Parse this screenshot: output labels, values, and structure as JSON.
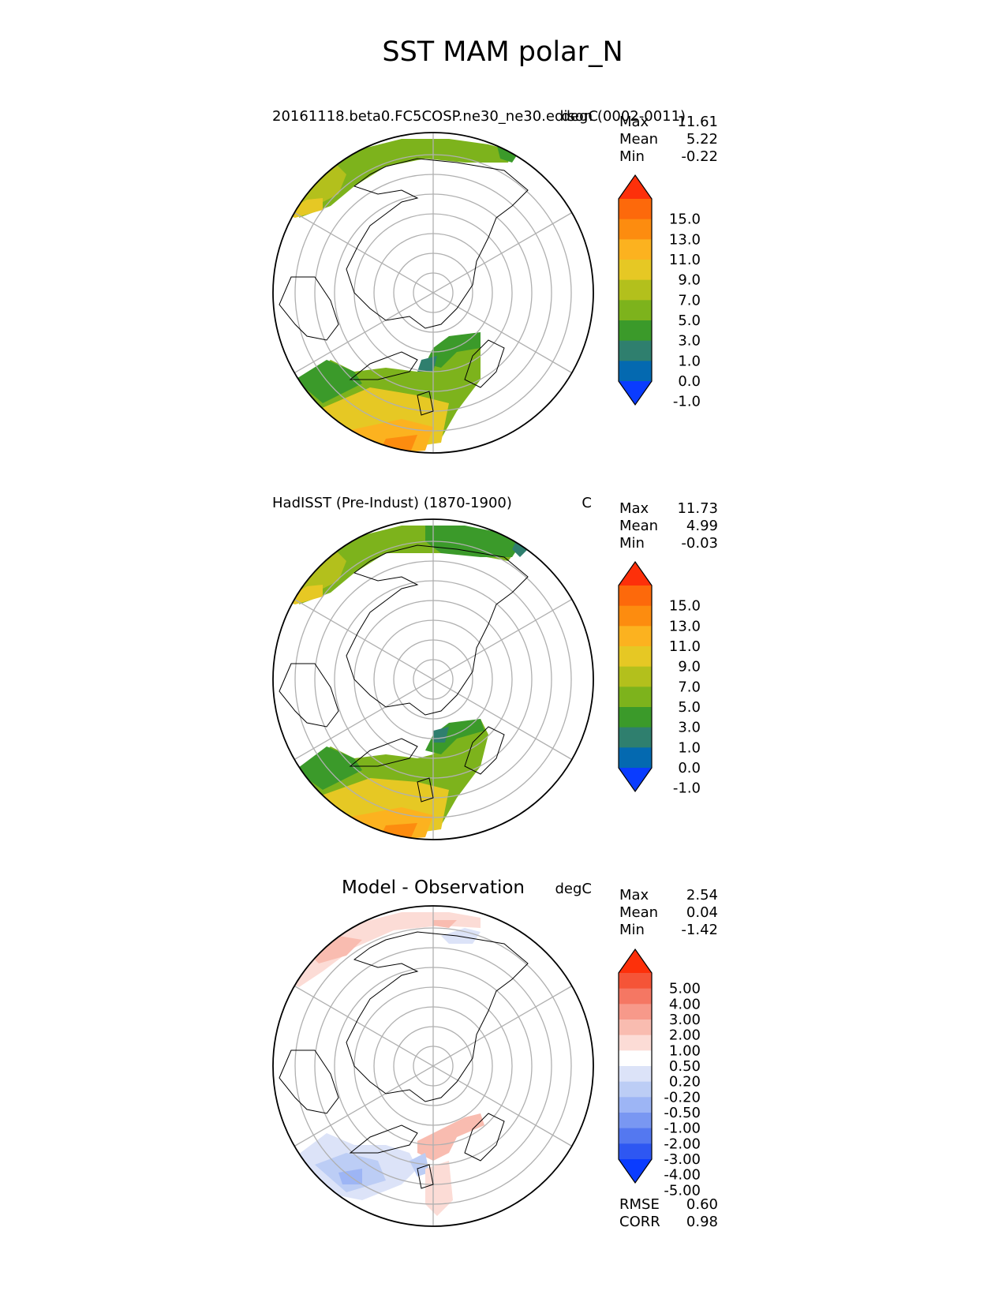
{
  "figure_title": "SST MAM polar_N",
  "colors": {
    "abs_levels": [
      "#0a3cff",
      "#0469b0",
      "#2f7f6e",
      "#3b9a2a",
      "#7db31c",
      "#b3c01c",
      "#e6c824",
      "#fcb21f",
      "#fd8c0f",
      "#fd690b",
      "#fd300a"
    ],
    "diff_levels": [
      "#0a3cff",
      "#2e57f2",
      "#5478f0",
      "#7997f2",
      "#9db5f5",
      "#bccdf5",
      "#dce3f8",
      "#ffffff",
      "#fcdcd6",
      "#f9bcb0",
      "#f7998a",
      "#f57763",
      "#f55437",
      "#fd300a"
    ],
    "land_edge": "#000000",
    "grid": "#b0b0b0"
  },
  "chart_data": [
    {
      "type": "heatmap",
      "projection": "north-polar-stereographic",
      "title_left": "20161118.beta0.FC5COSP.ne30_ne30.edison (0002-0011)",
      "title_right": "degC",
      "stats": [
        {
          "label": "Max",
          "value": "11.61"
        },
        {
          "label": "Mean",
          "value": "5.22"
        },
        {
          "label": "Min",
          "value": "-0.22"
        }
      ],
      "colorbar_ticks": [
        "15.0",
        "13.0",
        "11.0",
        "9.0",
        "7.0",
        "5.0",
        "3.0",
        "1.0",
        "0.0",
        "-1.0"
      ]
    },
    {
      "type": "heatmap",
      "projection": "north-polar-stereographic",
      "title_left": "HadISST (Pre-Indust) (1870-1900)",
      "title_right": "C",
      "stats": [
        {
          "label": "Max",
          "value": "11.73"
        },
        {
          "label": "Mean",
          "value": "4.99"
        },
        {
          "label": "Min",
          "value": "-0.03"
        }
      ],
      "colorbar_ticks": [
        "15.0",
        "13.0",
        "11.0",
        "9.0",
        "7.0",
        "5.0",
        "3.0",
        "1.0",
        "0.0",
        "-1.0"
      ]
    },
    {
      "type": "heatmap",
      "projection": "north-polar-stereographic",
      "title_center": "Model - Observation",
      "title_right": "degC",
      "stats": [
        {
          "label": "Max",
          "value": "2.54"
        },
        {
          "label": "Mean",
          "value": "0.04"
        },
        {
          "label": "Min",
          "value": "-1.42"
        }
      ],
      "colorbar_ticks": [
        "5.00",
        "4.00",
        "3.00",
        "2.00",
        "1.00",
        "0.50",
        "0.20",
        "-0.20",
        "-0.50",
        "-1.00",
        "-2.00",
        "-3.00",
        "-4.00",
        "-5.00"
      ],
      "metrics": [
        {
          "label": "RMSE",
          "value": "0.60"
        },
        {
          "label": "CORR",
          "value": "0.98"
        }
      ]
    }
  ]
}
